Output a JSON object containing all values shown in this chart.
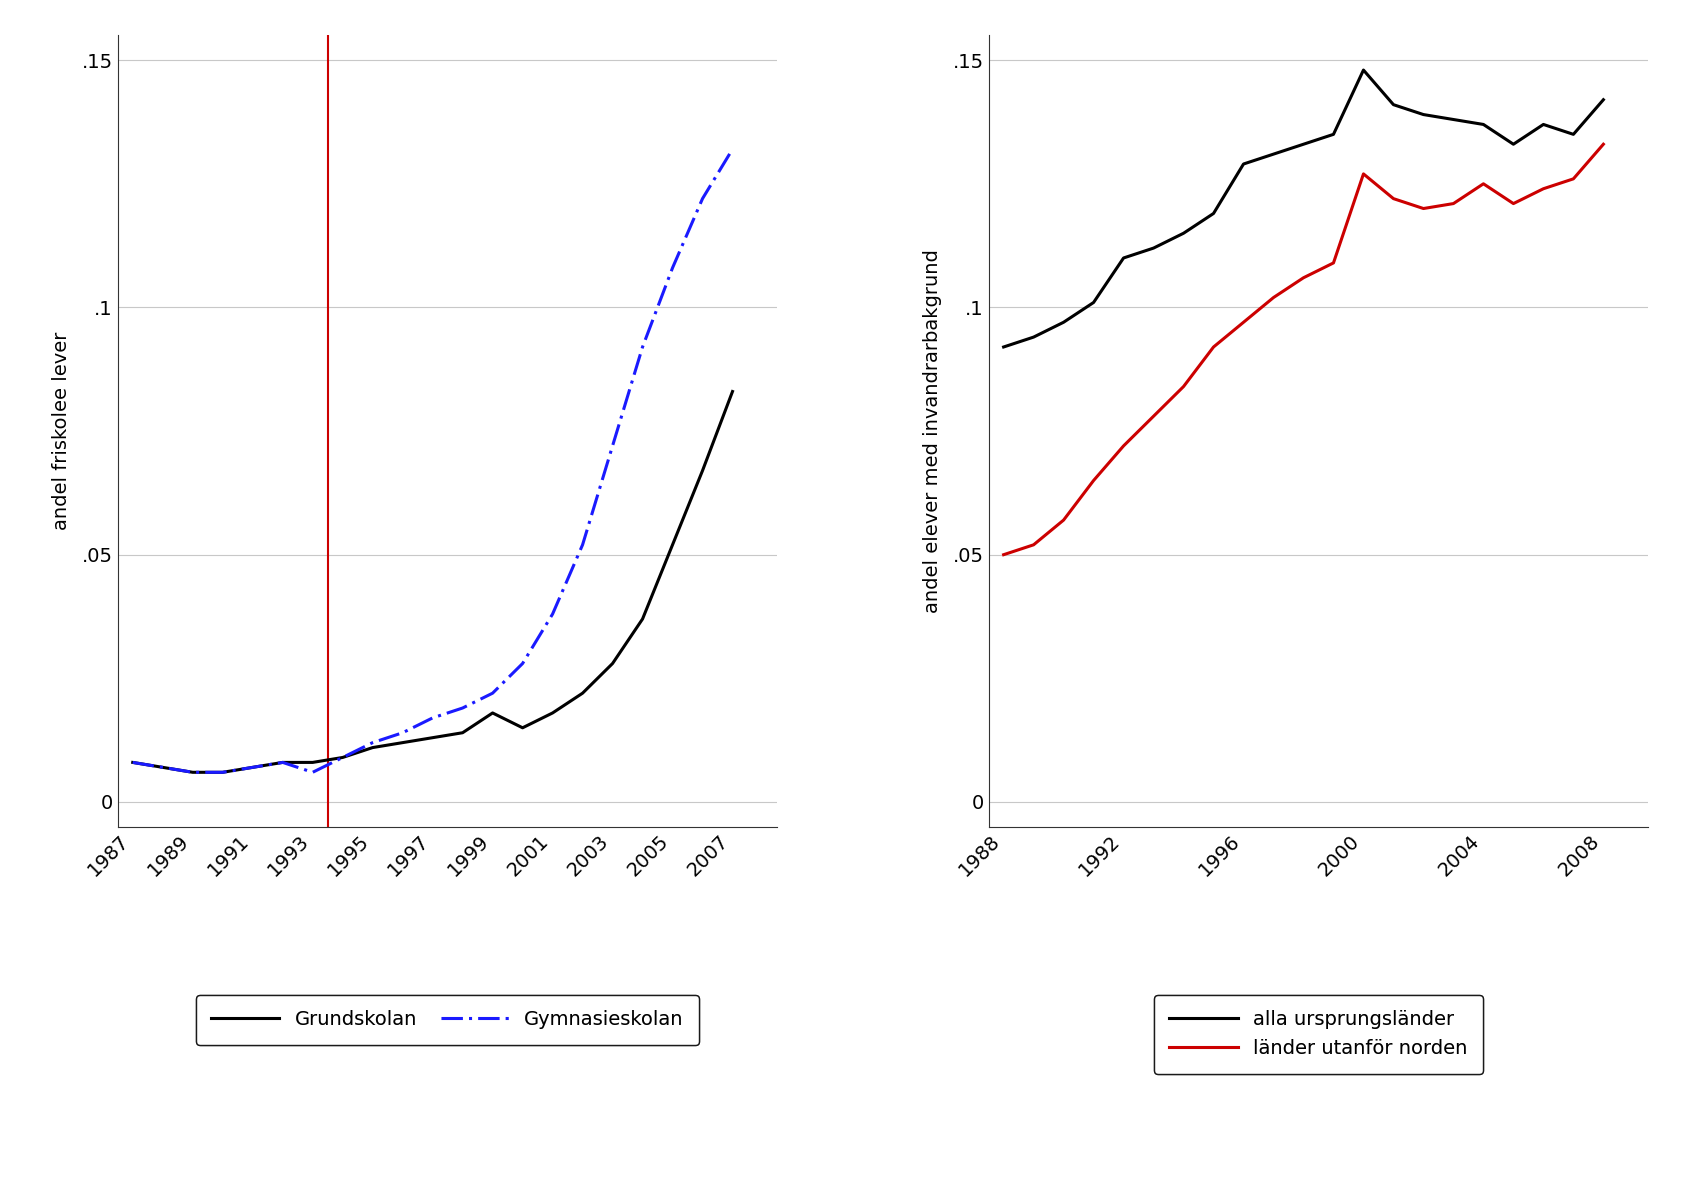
{
  "left": {
    "ylabel": "andel friskolee lever",
    "ylim": [
      -0.005,
      0.155
    ],
    "yticks": [
      0,
      0.05,
      0.1,
      0.15
    ],
    "ytick_labels": [
      "0",
      ".05",
      ".1",
      ".15"
    ],
    "xlim": [
      1986.5,
      2008.5
    ],
    "xticks": [
      1987,
      1989,
      1991,
      1993,
      1995,
      1997,
      1999,
      2001,
      2003,
      2005,
      2007
    ],
    "vline_x": 1993.5,
    "grundskolan_x": [
      1987,
      1988,
      1989,
      1990,
      1991,
      1992,
      1993,
      1994,
      1995,
      1996,
      1997,
      1998,
      1999,
      2000,
      2001,
      2002,
      2003,
      2004,
      2005,
      2006,
      2007
    ],
    "grundskolan_y": [
      0.008,
      0.007,
      0.006,
      0.006,
      0.007,
      0.008,
      0.008,
      0.009,
      0.011,
      0.012,
      0.013,
      0.014,
      0.018,
      0.015,
      0.018,
      0.022,
      0.028,
      0.037,
      0.052,
      0.067,
      0.083
    ],
    "gymnasieskolan_x": [
      1987,
      1988,
      1989,
      1990,
      1991,
      1992,
      1993,
      1994,
      1995,
      1996,
      1997,
      1998,
      1999,
      2000,
      2001,
      2002,
      2003,
      2004,
      2005,
      2006,
      2007
    ],
    "gymnasieskolan_y": [
      0.008,
      0.007,
      0.006,
      0.006,
      0.007,
      0.008,
      0.006,
      0.009,
      0.012,
      0.014,
      0.017,
      0.019,
      0.022,
      0.028,
      0.038,
      0.052,
      0.072,
      0.092,
      0.108,
      0.122,
      0.132
    ],
    "legend_labels": [
      "Grundskolan",
      "Gymnasieskolan"
    ],
    "grundskolan_color": "#000000",
    "gymnasieskolan_color": "#1a1aff",
    "vline_color": "#cc0000"
  },
  "right": {
    "ylabel": "andel elever med invandrarbakgrund",
    "ylim": [
      -0.005,
      0.155
    ],
    "yticks": [
      0,
      0.05,
      0.1,
      0.15
    ],
    "ytick_labels": [
      "0",
      ".05",
      ".1",
      ".15"
    ],
    "xlim": [
      1987.5,
      2009.5
    ],
    "xticks": [
      1988,
      1992,
      1996,
      2000,
      2004,
      2008
    ],
    "alla_x": [
      1988,
      1989,
      1990,
      1991,
      1992,
      1993,
      1994,
      1995,
      1996,
      1997,
      1998,
      1999,
      2000,
      2001,
      2002,
      2003,
      2004,
      2005,
      2006,
      2007,
      2008
    ],
    "alla_y": [
      0.092,
      0.094,
      0.097,
      0.101,
      0.11,
      0.112,
      0.115,
      0.119,
      0.129,
      0.131,
      0.133,
      0.135,
      0.148,
      0.141,
      0.139,
      0.138,
      0.137,
      0.133,
      0.137,
      0.135,
      0.142
    ],
    "norden_x": [
      1988,
      1989,
      1990,
      1991,
      1992,
      1993,
      1994,
      1995,
      1996,
      1997,
      1998,
      1999,
      2000,
      2001,
      2002,
      2003,
      2004,
      2005,
      2006,
      2007,
      2008
    ],
    "norden_y": [
      0.05,
      0.052,
      0.057,
      0.065,
      0.072,
      0.078,
      0.084,
      0.092,
      0.097,
      0.102,
      0.106,
      0.109,
      0.127,
      0.122,
      0.12,
      0.121,
      0.125,
      0.121,
      0.124,
      0.126,
      0.133
    ],
    "alla_color": "#000000",
    "norden_color": "#cc0000",
    "legend_labels": [
      "alla ursprungsländer",
      "länder utanför norden"
    ]
  },
  "background_color": "#ffffff",
  "grid_color": "#c8c8c8",
  "fig_width": 16.82,
  "fig_height": 11.81,
  "dpi": 100
}
